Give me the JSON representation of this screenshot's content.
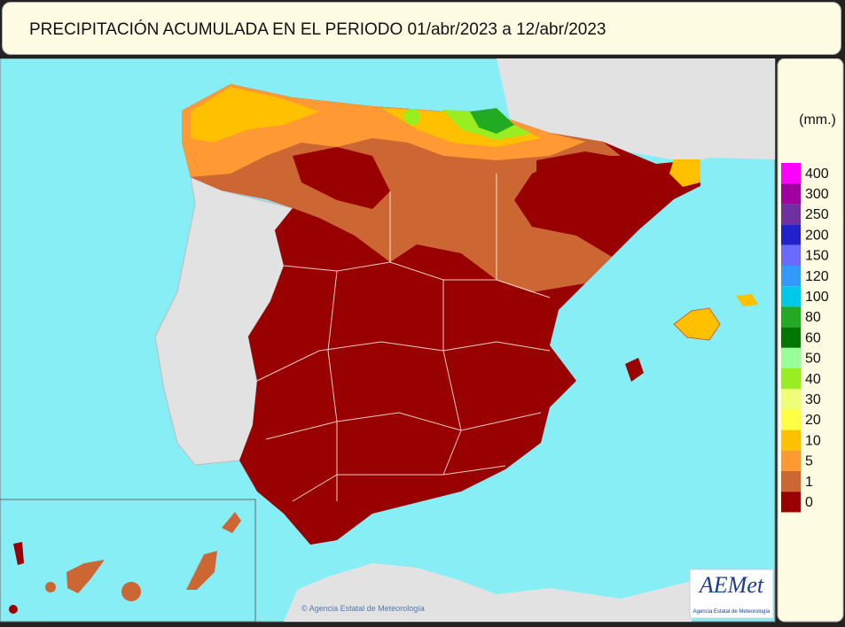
{
  "header": {
    "title": "PRECIPITACIÓN ACUMULADA EN EL PERIODO  01/abr/2023 a 12/abr/2023"
  },
  "legend": {
    "unit": "(mm.)",
    "items": [
      {
        "value": 400,
        "color": "#ff00ff"
      },
      {
        "value": 300,
        "color": "#a000a0"
      },
      {
        "value": 250,
        "color": "#7030a0"
      },
      {
        "value": 200,
        "color": "#2222cc"
      },
      {
        "value": 150,
        "color": "#6a6aff"
      },
      {
        "value": 120,
        "color": "#3399ff"
      },
      {
        "value": 100,
        "color": "#00c8e8"
      },
      {
        "value": 80,
        "color": "#22aa22"
      },
      {
        "value": 60,
        "color": "#007700"
      },
      {
        "value": 50,
        "color": "#99ff99"
      },
      {
        "value": 40,
        "color": "#99ee22"
      },
      {
        "value": 30,
        "color": "#eeff77"
      },
      {
        "value": 20,
        "color": "#ffff44"
      },
      {
        "value": 10,
        "color": "#ffc000"
      },
      {
        "value": 5,
        "color": "#ff9933"
      },
      {
        "value": 1,
        "color": "#cc6633"
      },
      {
        "value": 0,
        "color": "#990000"
      }
    ]
  },
  "map": {
    "credit": "© Agencia Estatal de Meteorología"
  },
  "logo": {
    "name": "AEMet",
    "subtitle": "Agencia Estatal de Meteorología"
  }
}
